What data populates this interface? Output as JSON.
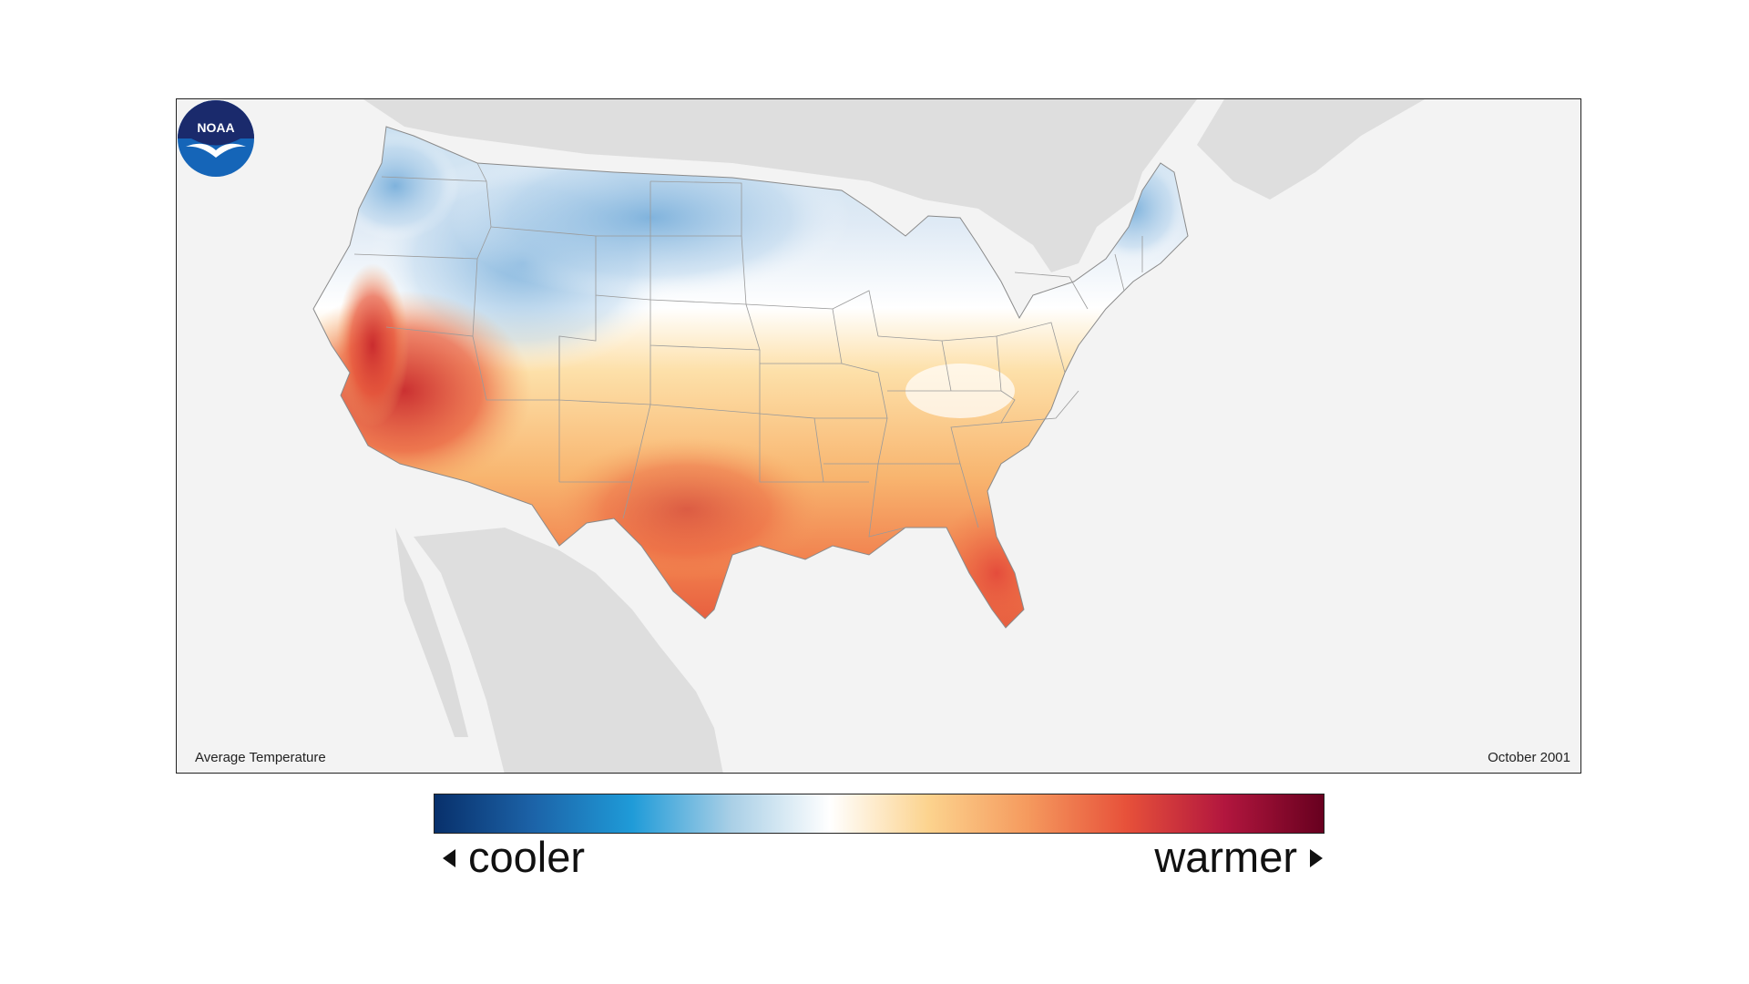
{
  "map": {
    "title": "Average Temperature",
    "date": "October 2001",
    "logo": {
      "icon": "noaa-logo-icon",
      "text": "NOAA"
    }
  },
  "legend": {
    "cooler_label": "cooler",
    "warmer_label": "warmer",
    "colors": [
      "#08306b",
      "#1c63a8",
      "#1f9bd8",
      "#a9cfe6",
      "#ffffff",
      "#fcd38e",
      "#f59a5e",
      "#e7513a",
      "#b2163e",
      "#67001f"
    ]
  },
  "colors": {
    "background": "#f3f3f3",
    "land_outside": "#dedede",
    "state_border": "#9a9a9a"
  }
}
